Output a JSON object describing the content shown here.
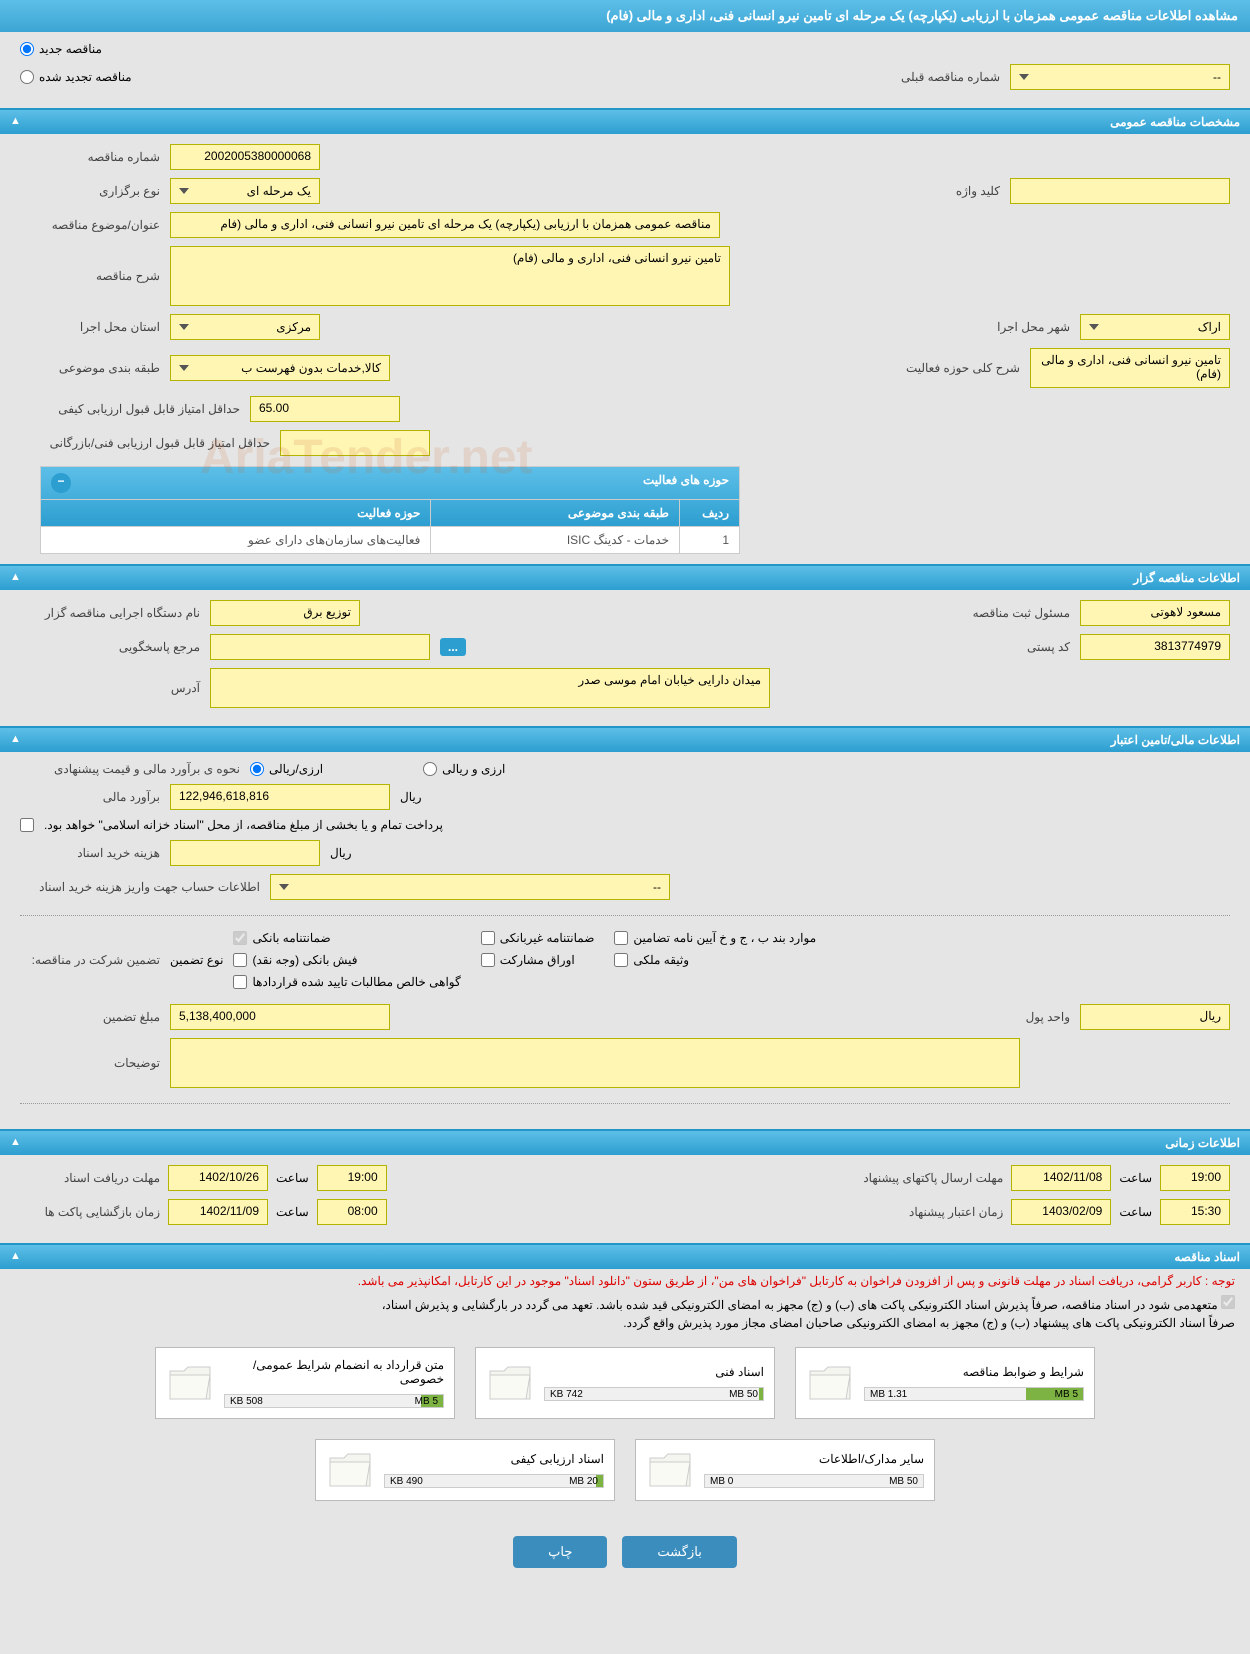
{
  "header": {
    "title": "مشاهده اطلاعات مناقصه عمومی همزمان با ارزیابی (یکپارچه) یک مرحله ای تامین نیرو انسانی فنی، اداری و مالی (فام)"
  },
  "topSection": {
    "radio_new": "مناقصه جدید",
    "radio_renewed": "مناقصه تجدید شده",
    "prev_num_label": "شماره مناقصه قبلی",
    "prev_num_value": "--"
  },
  "sections": {
    "general": "مشخصات مناقصه عمومی",
    "holder": "اطلاعات مناقصه گزار",
    "financial": "اطلاعات مالی/تامین اعتبار",
    "timing": "اطلاعات زمانی",
    "docs": "اسناد مناقصه"
  },
  "general": {
    "tender_num_label": "شماره مناقصه",
    "tender_num": "2002005380000068",
    "type_label": "نوع برگزاری",
    "type_value": "یک مرحله ای",
    "keyword_label": "کلید واژه",
    "keyword_value": "",
    "subject_label": "عنوان/موضوع مناقصه",
    "subject_value": "مناقصه عمومی همزمان با ارزیابی (یکپارچه) یک مرحله ای تامین نیرو انسانی فنی، اداری و مالی (فام",
    "desc_label": "شرح مناقصه",
    "desc_value": "تامین نیرو انسانی فنی، اداری و مالی (فام)",
    "province_label": "استان محل اجرا",
    "province_value": "مرکزی",
    "city_label": "شهر محل اجرا",
    "city_value": "اراک",
    "category_label": "طبقه بندی موضوعی",
    "category_value": "کالا,خدمات بدون فهرست ب",
    "activity_desc_label": "شرح کلی حوزه فعالیت",
    "activity_desc_value": "تامین نیرو انسانی فنی، اداری و مالی (فام)",
    "min_score_label": "حداقل امتیاز قابل قبول ارزیابی کیفی",
    "min_score_value": "65.00",
    "min_tech_label": "حداقل امتیاز قابل قبول ارزیابی فنی/بازرگانی",
    "min_tech_value": ""
  },
  "activityTable": {
    "title": "حوزه های فعالیت",
    "col_row": "ردیف",
    "col_category": "طبقه بندی موضوعی",
    "col_activity": "حوزه فعالیت",
    "row1_num": "1",
    "row1_cat": "خدمات - کدینگ ISIC",
    "row1_act": "فعالیت‌های سازمان‌های دارای عضو"
  },
  "holder": {
    "org_label": "نام دستگاه اجرایی مناقصه گزار",
    "org_value": "توزیع برق",
    "responsible_label": "مسئول ثبت مناقصه",
    "responsible_value": "مسعود لاهوتی",
    "contact_label": "مرجع پاسخگویی",
    "contact_value": "",
    "postal_label": "کد پستی",
    "postal_value": "3813774979",
    "address_label": "آدرس",
    "address_value": "میدان دارایی خیابان امام موسی صدر"
  },
  "financial": {
    "method_label": "نحوه ی برآورد مالی و قیمت پیشنهادی",
    "radio_rial": "ارزی/ریالی",
    "radio_both": "ارزی و ریالی",
    "estimate_label": "برآورد مالی",
    "estimate_value": "122,946,618,816",
    "currency": "ریال",
    "payment_note": "پرداخت تمام و یا بخشی از مبلغ مناقصه، از محل \"اسناد خزانه اسلامی\" خواهد بود.",
    "purchase_cost_label": "هزینه خرید اسناد",
    "purchase_cost_currency": "ریال",
    "account_label": "اطلاعات حساب جهت واریز هزینه خرید اسناد",
    "account_value": "--",
    "guarantee_label": "تضمین شرکت در مناقصه:",
    "guarantee_type_label": "نوع تضمین",
    "chk_bank_guarantee": "ضمانتنامه بانکی",
    "chk_nonbank": "ضمانتنامه غیربانکی",
    "chk_guarantee_items": "موارد بند ب ، ج و خ آیین نامه تضامین",
    "chk_cash": "فیش بانکی (وجه نقد)",
    "chk_bonds": "اوراق مشارکت",
    "chk_property": "وثیقه ملکی",
    "chk_receivables": "گواهی خالص مطالبات تایید شده قراردادها",
    "guarantee_amount_label": "مبلغ تضمین",
    "guarantee_amount": "5,138,400,000",
    "unit_label": "واحد پول",
    "unit_value": "ریال",
    "notes_label": "توضیحات"
  },
  "timing": {
    "receive_label": "مهلت دریافت اسناد",
    "receive_date": "1402/10/26",
    "time_label": "ساعت",
    "receive_time": "19:00",
    "send_label": "مهلت ارسال پاکتهای پیشنهاد",
    "send_date": "1402/11/08",
    "send_time": "19:00",
    "open_label": "زمان بازگشایی پاکت ها",
    "open_date": "1402/11/09",
    "open_time": "08:00",
    "validity_label": "زمان اعتبار پیشنهاد",
    "validity_date": "1403/02/09",
    "validity_time": "15:30"
  },
  "docs": {
    "notice1": "توجه : کاربر گرامی، دریافت اسناد در مهلت قانونی و پس از افزودن فراخوان به کارتابل \"فراخوان های من\"، از طریق ستون \"دانلود اسناد\" موجود در این کارتابل، امکانپذیر می باشد.",
    "notice2": "متعهدمی شود در اسناد مناقصه، صرفاً پذیرش اسناد الکترونیکی پاکت های (ب) و (ج) مجهز به امضای الکترونیکی قید شده باشد. تعهد می گردد در بارگشایی و پذیرش اسناد،",
    "notice3": "صرفاً اسناد الکترونیکی پاکت های پیشنهاد (ب) و (ج) مجهز به امضای الکترونیکی صاحبان امضای مجاز مورد پذیرش واقع گردد.",
    "files": [
      {
        "title": "شرایط و ضوابط مناقصه",
        "size": "1.31 MB",
        "max": "5 MB",
        "fill": 26
      },
      {
        "title": "اسناد فنی",
        "size": "742 KB",
        "max": "50 MB",
        "fill": 2
      },
      {
        "title": "متن قرارداد به انضمام شرایط عمومی/خصوصی",
        "size": "508 KB",
        "max": "5 MB",
        "fill": 10
      },
      {
        "title": "سایر مدارک/اطلاعات",
        "size": "0 MB",
        "max": "50 MB",
        "fill": 0
      },
      {
        "title": "اسناد ارزیابی کیفی",
        "size": "490 KB",
        "max": "20 MB",
        "fill": 3
      }
    ]
  },
  "buttons": {
    "back": "بازگشت",
    "print": "چاپ"
  },
  "watermark": "AriaTender.net",
  "colors": {
    "header_bg": "#3da5d4",
    "field_bg": "#fff6b3",
    "field_border": "#b3b300",
    "btn_primary": "#3b8dbd"
  }
}
